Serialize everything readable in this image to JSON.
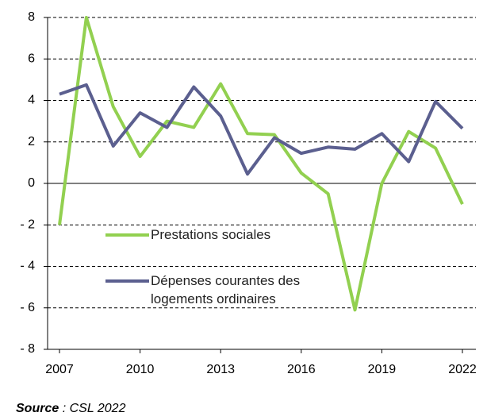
{
  "chart_data": {
    "type": "line",
    "x": [
      2007,
      2008,
      2009,
      2010,
      2011,
      2012,
      2013,
      2014,
      2015,
      2016,
      2017,
      2018,
      2019,
      2020,
      2021,
      2022
    ],
    "series": [
      {
        "name": "Prestations sociales",
        "color": "#92d050",
        "values": [
          -2.0,
          8.0,
          3.7,
          1.3,
          3.0,
          2.7,
          4.8,
          2.4,
          2.35,
          0.5,
          -0.5,
          -6.1,
          0.0,
          2.5,
          1.7,
          -1.0
        ]
      },
      {
        "name": "Dépenses courantes des logements ordinaires",
        "color": "#5b5f8f",
        "values": [
          4.3,
          4.75,
          1.8,
          3.4,
          2.7,
          4.65,
          3.25,
          0.45,
          2.2,
          1.45,
          1.75,
          1.65,
          2.4,
          1.05,
          3.95,
          2.65
        ]
      }
    ],
    "xlim": [
      2007,
      2022
    ],
    "xticks": [
      2007,
      2010,
      2013,
      2016,
      2019,
      2022
    ],
    "ylim": [
      -8,
      8
    ],
    "yticks": [
      {
        "value": -8,
        "label": "- 8"
      },
      {
        "value": -6,
        "label": "- 6"
      },
      {
        "value": -4,
        "label": "- 4"
      },
      {
        "value": -2,
        "label": "- 2"
      },
      0,
      2,
      4,
      6,
      8
    ],
    "grid": true,
    "source": {
      "label": "Source",
      "text": " : CSL 2022"
    }
  }
}
